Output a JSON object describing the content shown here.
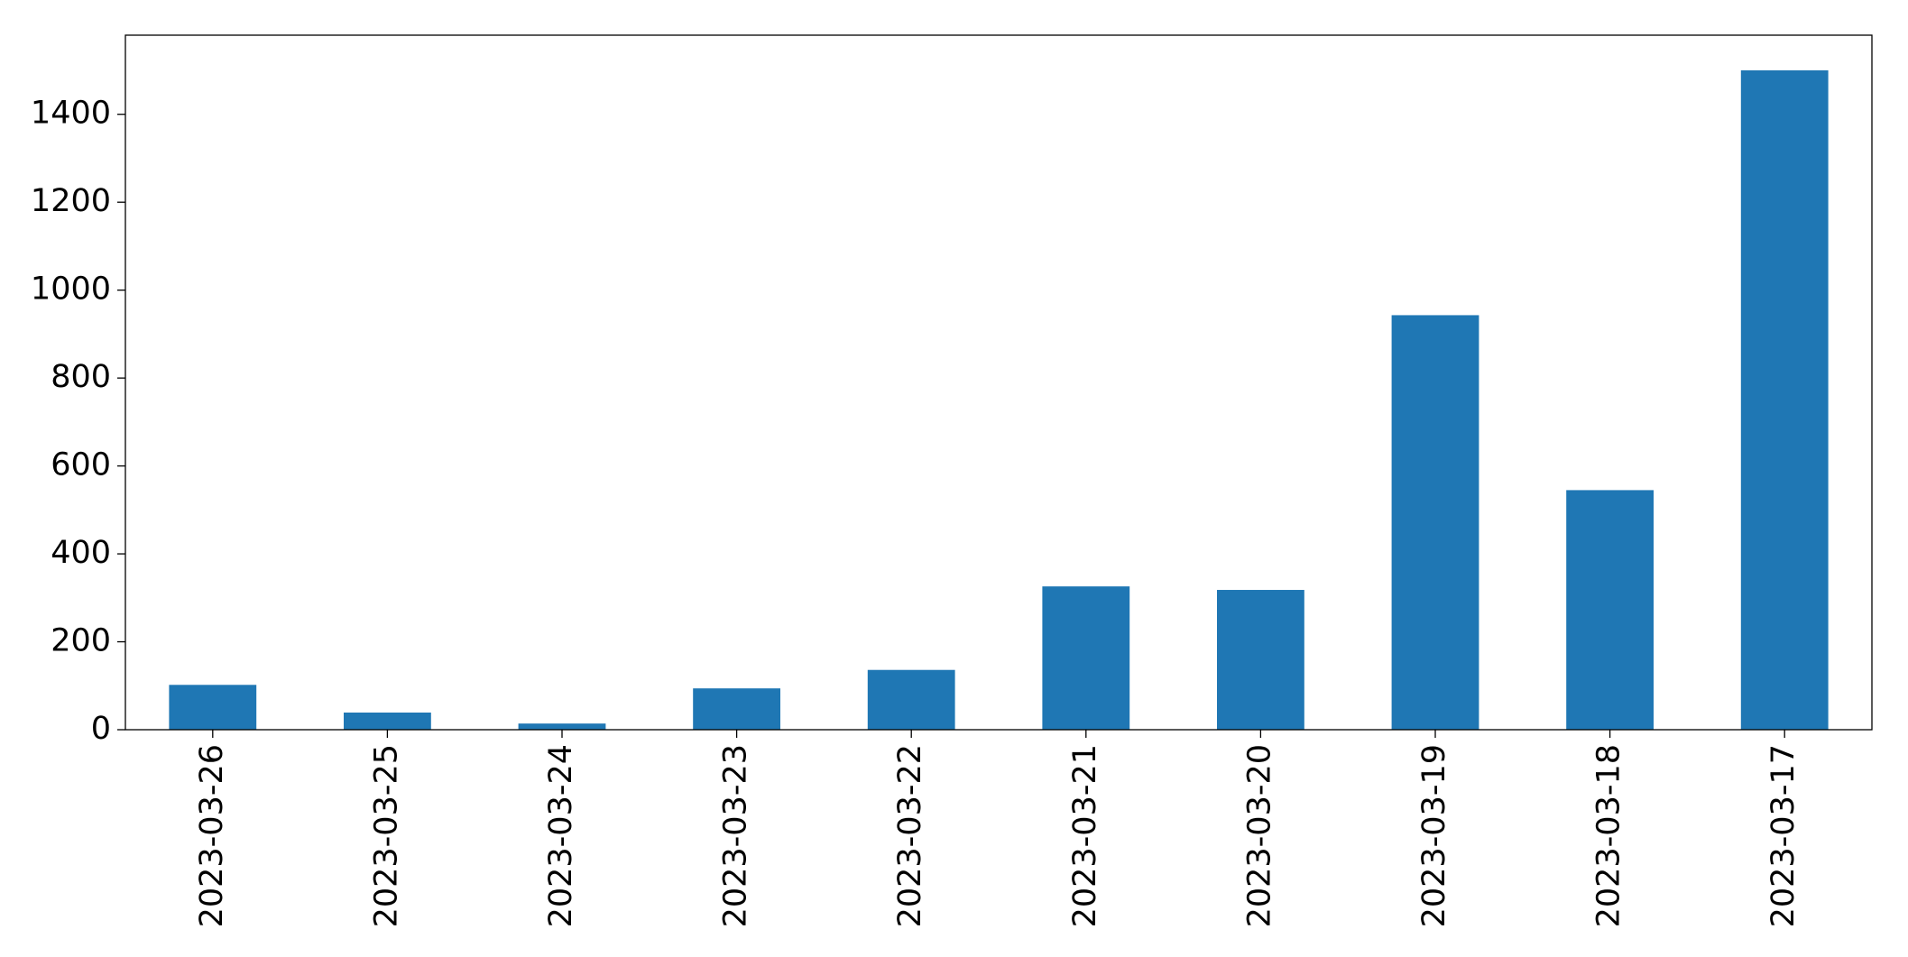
{
  "chart_data": {
    "type": "bar",
    "categories": [
      "2023-03-26",
      "2023-03-25",
      "2023-03-24",
      "2023-03-23",
      "2023-03-22",
      "2023-03-21",
      "2023-03-20",
      "2023-03-19",
      "2023-03-18",
      "2023-03-17"
    ],
    "values": [
      102,
      39,
      14,
      94,
      136,
      326,
      318,
      943,
      545,
      1500
    ],
    "color": "#1f77b4",
    "ylim": [
      0,
      1580
    ],
    "yticks": [
      0,
      200,
      400,
      600,
      800,
      1000,
      1200,
      1400
    ],
    "grid": false
  }
}
